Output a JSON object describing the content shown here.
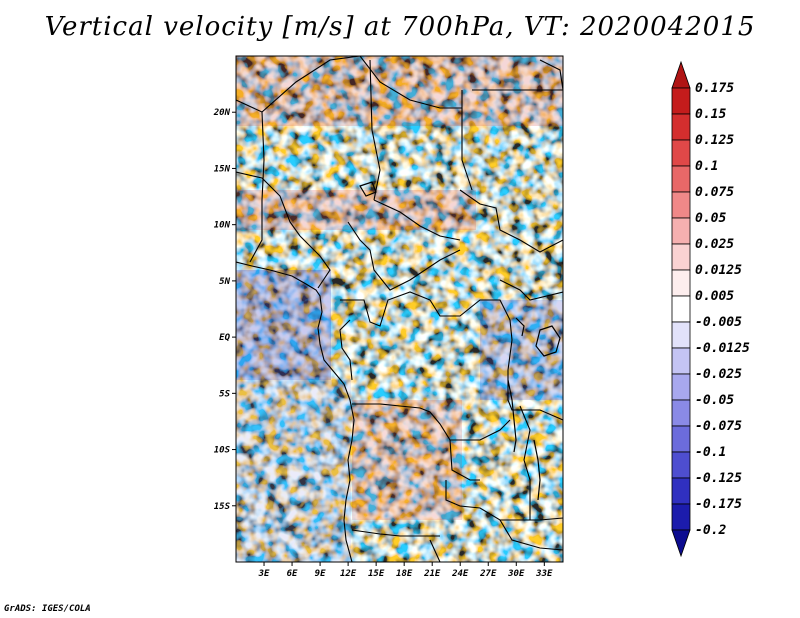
{
  "title": "Vertical velocity [m/s] at 700hPa, VT: 2020042015",
  "footer": "GrADS: IGES/COLA",
  "variable": "Vertical velocity",
  "units": "m/s",
  "level": "700hPa",
  "valid_time": "2020042015",
  "map": {
    "region": "Central Africa",
    "lon_range": [
      0,
      35
    ],
    "lat_range": [
      -20,
      25
    ],
    "lon_ticks": [
      "3E",
      "6E",
      "9E",
      "12E",
      "15E",
      "18E",
      "21E",
      "24E",
      "27E",
      "30E",
      "33E"
    ],
    "lat_ticks": [
      "20N",
      "15N",
      "10N",
      "5N",
      "EQ",
      "5S",
      "10S",
      "15S"
    ]
  },
  "colorbar": {
    "levels": [
      "0.175",
      "0.15",
      "0.125",
      "0.1",
      "0.075",
      "0.05",
      "0.025",
      "0.0125",
      "0.005",
      "-0.005",
      "-0.0125",
      "-0.025",
      "-0.05",
      "-0.075",
      "-0.1",
      "-0.125",
      "-0.175",
      "-0.2"
    ],
    "colors": [
      "#b01414",
      "#c41c1c",
      "#d42e2e",
      "#e04848",
      "#e86868",
      "#f08888",
      "#f6b0b0",
      "#fad2d2",
      "#fdeeee",
      "#ffffff",
      "#e2e2fa",
      "#c4c4f4",
      "#a8a8ee",
      "#8a8ae6",
      "#6c6cdc",
      "#4e4ed0",
      "#3030c0",
      "#1c1cac",
      "#0c0c90"
    ]
  },
  "colors": {
    "warm_strong": "#b01414",
    "cool_strong": "#0c0c90",
    "border": "#000000"
  }
}
